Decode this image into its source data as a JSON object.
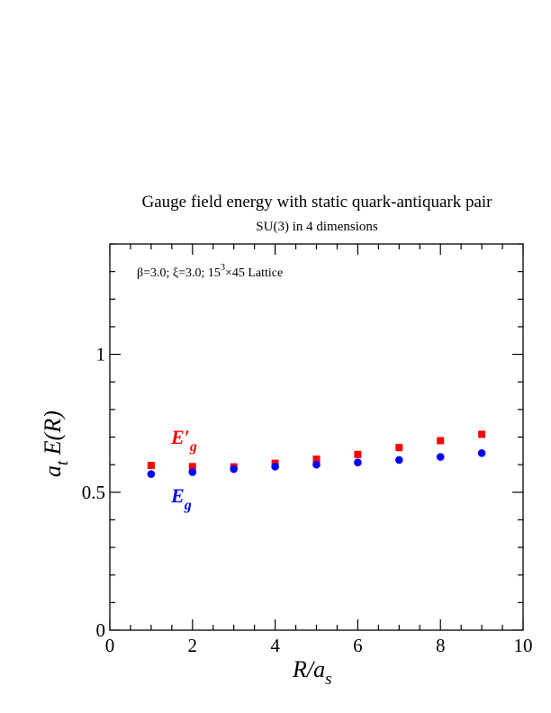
{
  "title": "Gauge field energy with static quark-antiquark pair",
  "subtitle": "SU(3) in 4 dimensions",
  "annotation": {
    "prefix": "β=3.0;  ξ=3.0; 15",
    "sup": "3",
    "suffix": "×45 Lattice"
  },
  "x_tick_labels": [
    "0",
    "2",
    "4",
    "6",
    "8",
    "10"
  ],
  "y_tick_labels": [
    "0",
    "0.5",
    "1"
  ],
  "chart_data": {
    "type": "scatter",
    "xlim": [
      0,
      10
    ],
    "ylim": [
      0,
      1.4
    ],
    "xlabel": "R/a_s",
    "ylabel": "a_t E(R)",
    "x_ticks": [
      0,
      2,
      4,
      6,
      8,
      10
    ],
    "y_ticks": [
      0,
      0.5,
      1
    ],
    "series": [
      {
        "name": "E′_g",
        "color": "#ff0000",
        "marker": "square",
        "x": [
          1,
          2,
          3,
          4,
          5,
          6,
          7,
          8,
          9
        ],
        "y": [
          0.597,
          0.593,
          0.592,
          0.605,
          0.62,
          0.637,
          0.662,
          0.687,
          0.71
        ]
      },
      {
        "name": "E_g",
        "color": "#0000ff",
        "marker": "circle",
        "x": [
          1,
          2,
          3,
          4,
          5,
          6,
          7,
          8,
          9
        ],
        "y": [
          0.566,
          0.573,
          0.584,
          0.593,
          0.6,
          0.608,
          0.617,
          0.628,
          0.642
        ]
      }
    ]
  }
}
